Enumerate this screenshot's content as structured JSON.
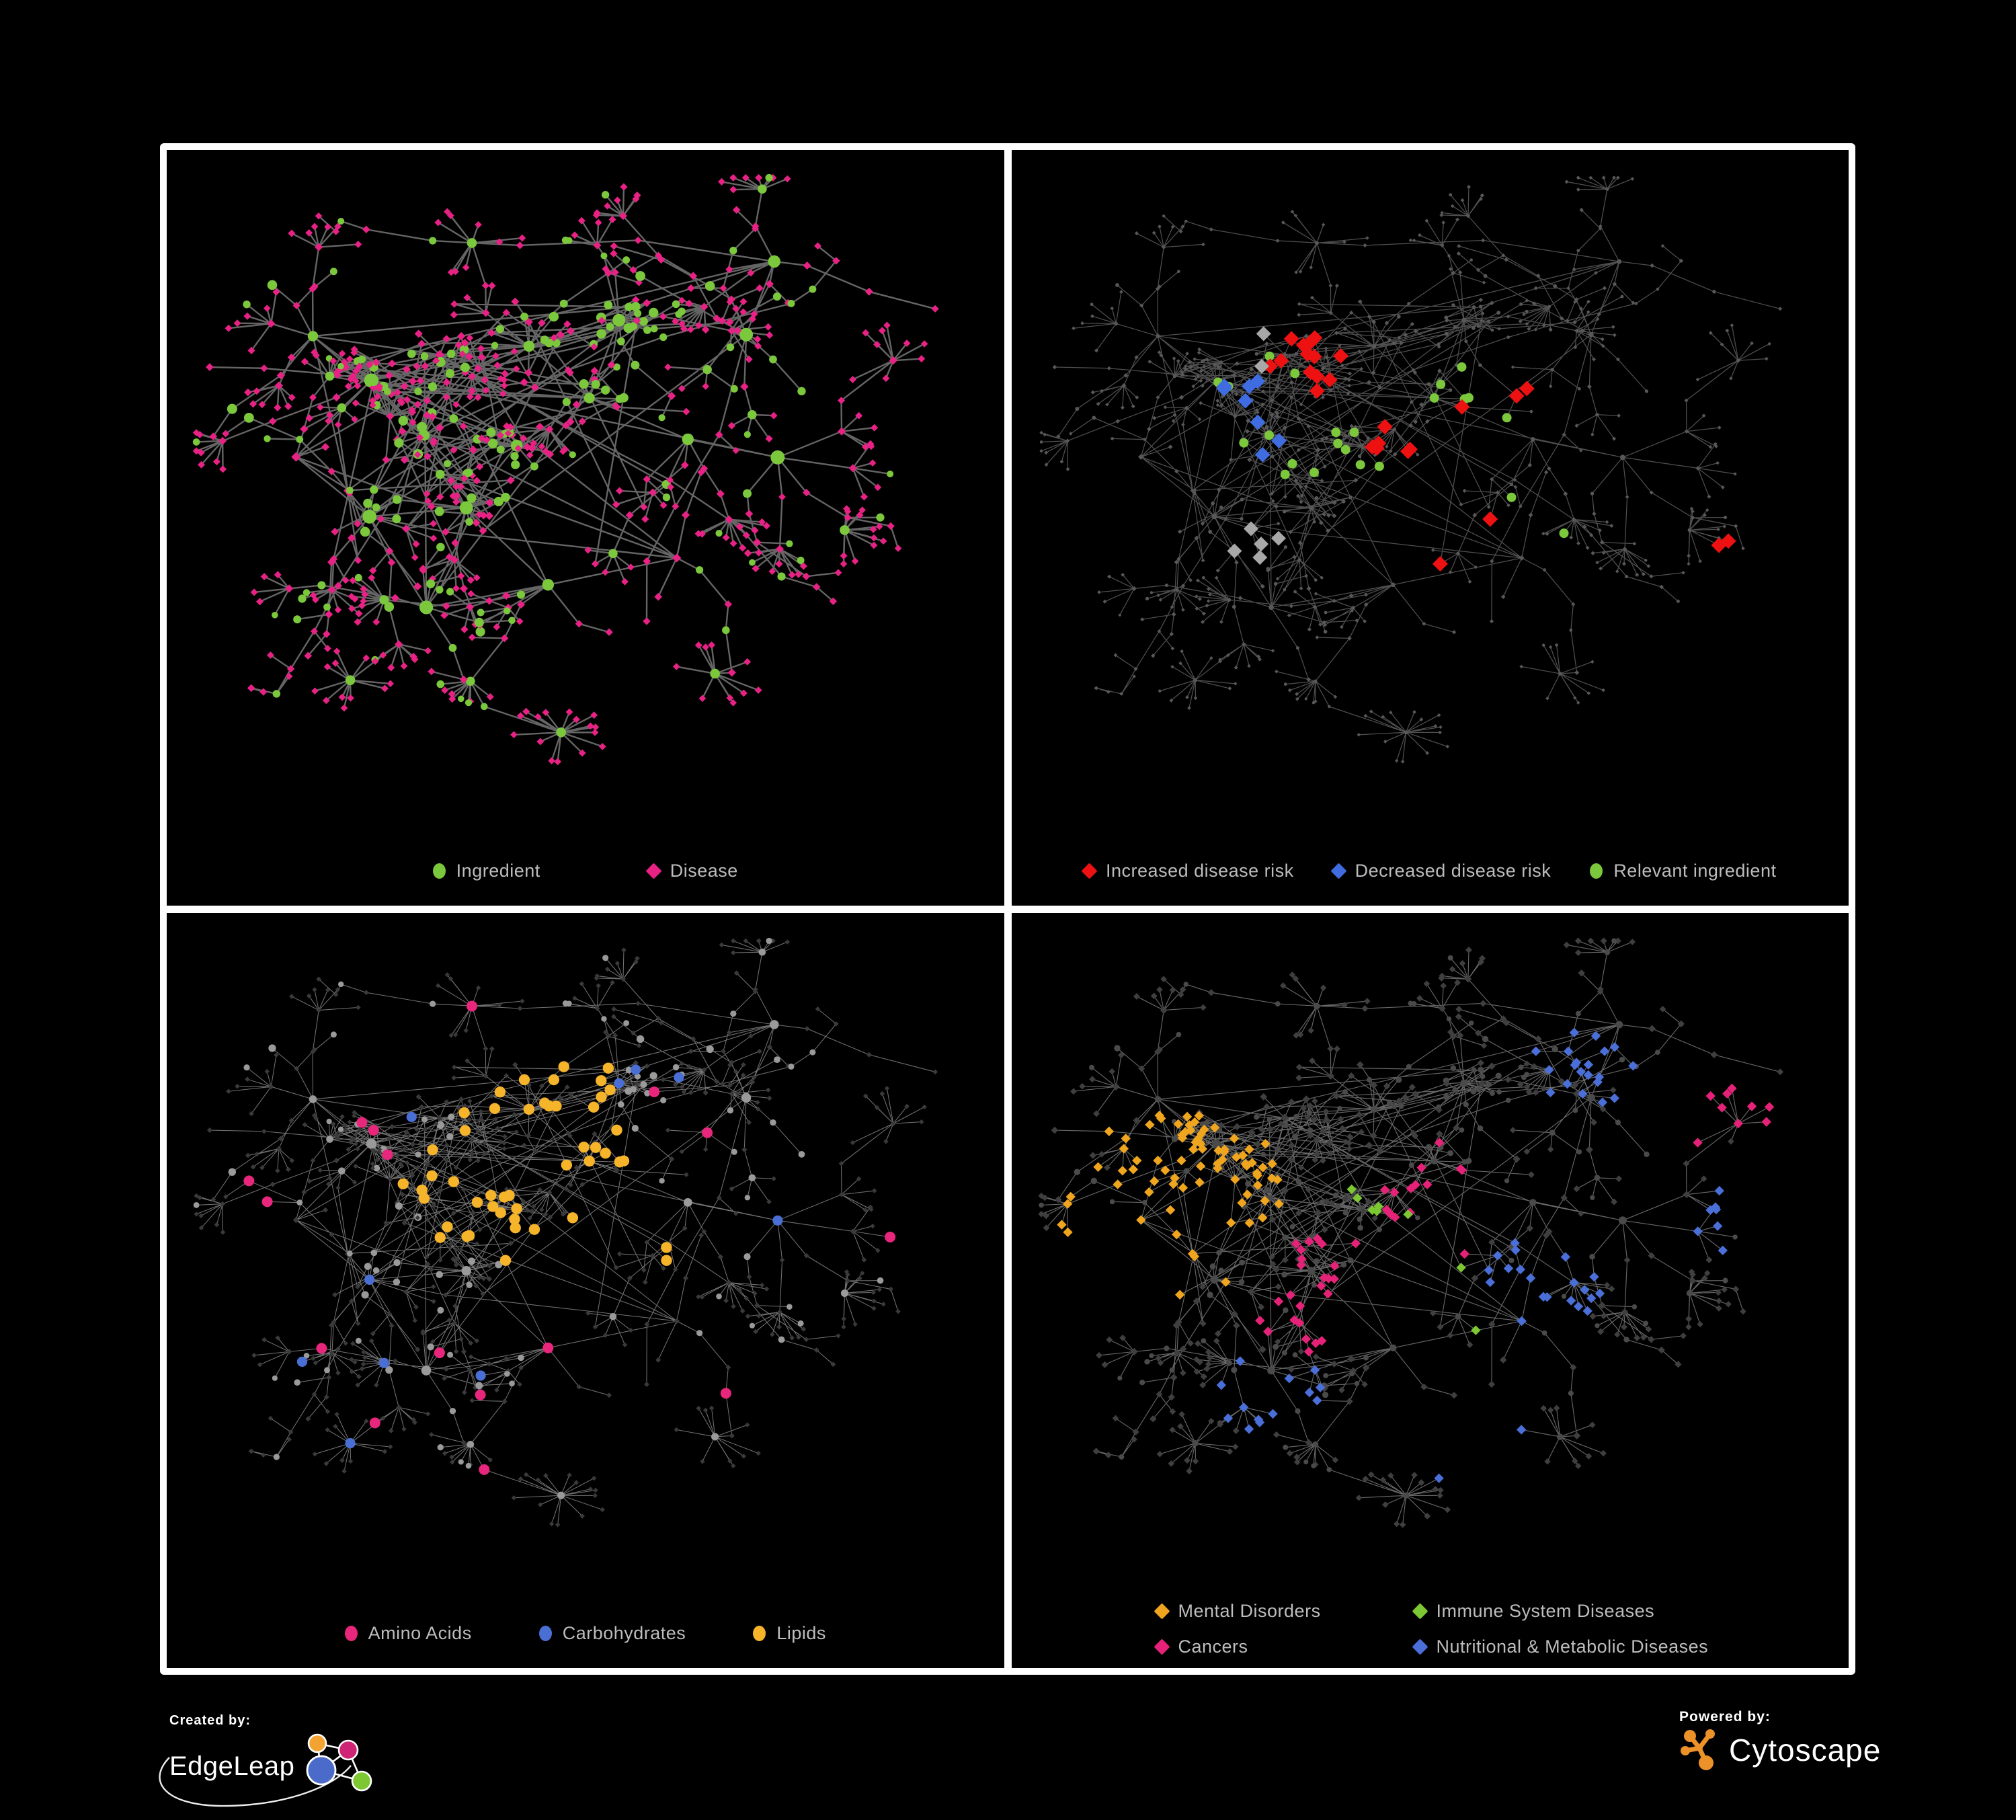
{
  "page": {
    "background": "#000000",
    "panel_background": "#000000",
    "panel_border": "#ffffff",
    "legend_text_color": "#bdbdbd"
  },
  "panels": [
    {
      "name": "ingredient-disease-network",
      "legend_layout": "row",
      "legend_gap": 160,
      "legend": [
        {
          "label": "Ingredient",
          "shape": "circle",
          "color": "#7cc83c"
        },
        {
          "label": "Disease",
          "shape": "diamond",
          "color": "#e82185"
        }
      ]
    },
    {
      "name": "disease-risk-network",
      "legend_layout": "row",
      "legend_gap": 58,
      "legend": [
        {
          "label": "Increased disease risk",
          "shape": "diamond",
          "color": "#ee1111"
        },
        {
          "label": "Decreased disease risk",
          "shape": "diamond",
          "color": "#3f6ce0"
        },
        {
          "label": "Relevant ingredient",
          "shape": "circle",
          "color": "#7cc83c"
        }
      ]
    },
    {
      "name": "nutrient-class-network",
      "legend_layout": "row",
      "legend_gap": 100,
      "legend": [
        {
          "label": "Amino Acids",
          "shape": "circle",
          "color": "#e8267c"
        },
        {
          "label": "Carbohydrates",
          "shape": "circle",
          "color": "#4a6fd4"
        },
        {
          "label": "Lipids",
          "shape": "circle",
          "color": "#f6b42b"
        }
      ]
    },
    {
      "name": "disease-class-network",
      "legend_layout": "grid2",
      "legend": [
        {
          "label": "Mental Disorders",
          "shape": "diamond",
          "color": "#f0a51f"
        },
        {
          "label": "Immune System Diseases",
          "shape": "diamond",
          "color": "#7cc832"
        },
        {
          "label": "Cancers",
          "shape": "diamond",
          "color": "#e62278"
        },
        {
          "label": "Nutritional & Metabolic Diseases",
          "shape": "diamond",
          "color": "#4a6fd8"
        }
      ]
    }
  ],
  "footer": {
    "created_by_label": "Created by:",
    "created_by_name": "EdgeLeap",
    "powered_by_label": "Powered by:",
    "powered_by_name": "Cytoscape",
    "edgeleap_colors": {
      "orange": "#f2a332",
      "pink": "#cf2475",
      "blue": "#4a6bc9",
      "green": "#7dc832"
    },
    "cytoscape_color": "#ed9129"
  },
  "network": {
    "type": "network",
    "seed": 7,
    "hubs": [
      [
        0.33,
        0.3,
        0.5
      ],
      [
        0.43,
        0.28,
        0.55
      ],
      [
        0.3,
        0.41,
        0.45
      ],
      [
        0.41,
        0.43,
        0.5
      ],
      [
        0.24,
        0.33,
        0.4
      ],
      [
        0.51,
        0.35,
        0.5
      ],
      [
        0.36,
        0.53,
        0.45
      ],
      [
        0.55,
        0.23,
        0.85
      ],
      [
        0.23,
        0.53,
        0.4
      ],
      [
        0.62,
        0.43,
        0.5
      ],
      [
        0.7,
        0.27,
        0.35
      ],
      [
        0.74,
        0.45,
        0.35
      ],
      [
        0.45,
        0.64,
        0.4
      ],
      [
        0.62,
        0.61,
        0.35
      ],
      [
        0.17,
        0.26,
        0.35
      ],
      [
        0.3,
        0.67,
        0.35
      ],
      [
        0.73,
        0.14,
        0.3
      ],
      [
        0.14,
        0.44,
        0.35
      ]
    ],
    "dense_hubs": 9,
    "fan_probability": 0.5,
    "cross_edges": 45,
    "dandelions": [
      [
        0.47,
        0.87,
        16
      ],
      [
        0.21,
        0.79,
        11
      ],
      [
        0.82,
        0.56,
        12
      ],
      [
        0.36,
        0.12,
        9
      ],
      [
        0.88,
        0.3,
        9
      ],
      [
        0.66,
        0.78,
        10
      ]
    ],
    "chains": [
      [
        0.92,
        0.08
      ],
      [
        0.06,
        0.86
      ],
      [
        0.94,
        0.78
      ],
      [
        0.08,
        0.08
      ],
      [
        0.5,
        0.95
      ]
    ],
    "styles": [
      {
        "edge": {
          "color": "#6a6a6a",
          "width": 2.4,
          "opacity": 0.95
        },
        "ingredient": {
          "shape": "circle",
          "color": "#7cc83c",
          "size": 3.4,
          "size_scale": 2.6
        },
        "disease": {
          "shape": "diamond",
          "color": "#e82185",
          "size": 4.8,
          "size_scale": 0.9
        },
        "highlights": []
      },
      {
        "edge": {
          "color": "#5d5d5d",
          "width": 1.25,
          "opacity": 0.85
        },
        "ingredient": {
          "shape": "circle",
          "color": "#585858",
          "size": 1.7,
          "size_scale": 0.8
        },
        "disease": {
          "shape": "diamond",
          "color": "#585858",
          "size": 2.3,
          "size_scale": 0.8
        },
        "highlights": [
          {
            "base": "disease",
            "shape": "diamond",
            "color": "#ee1111",
            "size": 11.5,
            "count": 26,
            "centers": [
              [
                0.4,
                0.38
              ],
              [
                0.33,
                0.3
              ],
              [
                0.47,
                0.45
              ],
              [
                0.52,
                0.55
              ],
              [
                0.44,
                0.62
              ],
              [
                0.86,
                0.62
              ],
              [
                0.58,
                0.35
              ]
            ],
            "r": 0.1,
            "uniform": 0.015
          },
          {
            "base": "disease",
            "shape": "diamond",
            "color": "#3f6ce0",
            "size": 11.5,
            "count": 8,
            "centers": [
              [
                0.26,
                0.34
              ],
              [
                0.29,
                0.42
              ],
              [
                0.87,
                0.2
              ]
            ],
            "r": 0.07,
            "uniform": 0.004
          },
          {
            "base": "disease",
            "shape": "diamond",
            "color": "#a8a8a8",
            "size": 11.0,
            "count": 7,
            "centers": [
              [
                0.3,
                0.3
              ],
              [
                0.45,
                0.5
              ],
              [
                0.55,
                0.42
              ],
              [
                0.3,
                0.6
              ]
            ],
            "r": 0.1,
            "uniform": 0.01
          },
          {
            "base": "ingredient",
            "shape": "circle",
            "color": "#7cc83c",
            "size": 7.0,
            "count": 24,
            "centers": [
              [
                0.38,
                0.36
              ],
              [
                0.45,
                0.42
              ],
              [
                0.33,
                0.45
              ],
              [
                0.52,
                0.38
              ],
              [
                0.6,
                0.55
              ],
              [
                0.25,
                0.3
              ]
            ],
            "r": 0.13,
            "uniform": 0.02
          }
        ]
      },
      {
        "edge": {
          "color": "#8f8f8f",
          "width": 1.05,
          "opacity": 0.8
        },
        "ingredient": {
          "shape": "circle",
          "color": "#9a9a9a",
          "size": 3.2,
          "size_scale": 1.6
        },
        "disease": {
          "shape": "diamond",
          "color": "#3a3a3a",
          "size": 3.4,
          "size_scale": 0.5
        },
        "highlights": [
          {
            "base": "ingredient",
            "shape": "circle",
            "color": "#f6b42b",
            "size": 8.2,
            "count": 48,
            "centers": [
              [
                0.44,
                0.32
              ],
              [
                0.4,
                0.45
              ],
              [
                0.48,
                0.38
              ],
              [
                0.36,
                0.38
              ],
              [
                0.52,
                0.52
              ],
              [
                0.45,
                0.27
              ]
            ],
            "r": 0.1,
            "uniform": 0.03
          },
          {
            "base": "ingredient",
            "shape": "circle",
            "color": "#e8267c",
            "size": 8.0,
            "count": 16,
            "centers": [],
            "r": 0.1,
            "uniform": 1.0
          },
          {
            "base": "ingredient",
            "shape": "circle",
            "color": "#4a6fd4",
            "size": 7.6,
            "count": 10,
            "centers": [
              [
                0.45,
                0.27
              ],
              [
                0.43,
                0.34
              ]
            ],
            "r": 0.05,
            "uniform": 0.02
          }
        ]
      },
      {
        "edge": {
          "color": "#808080",
          "width": 1.15,
          "opacity": 0.8
        },
        "ingredient": {
          "shape": "circle",
          "color": "#4a4a4a",
          "size": 3.0,
          "size_scale": 1.1
        },
        "disease": {
          "shape": "diamond",
          "color": "#3f3f3f",
          "size": 4.2,
          "size_scale": 0.9
        },
        "highlights": [
          {
            "base": "disease",
            "shape": "diamond",
            "color": "#f0a51f",
            "size": 7.2,
            "count": 78,
            "centers": [
              [
                0.16,
                0.42
              ],
              [
                0.2,
                0.48
              ],
              [
                0.12,
                0.48
              ],
              [
                0.24,
                0.4
              ],
              [
                0.18,
                0.35
              ]
            ],
            "r": 0.09,
            "uniform": 0.015
          },
          {
            "base": "disease",
            "shape": "diamond",
            "color": "#e62278",
            "size": 7.2,
            "count": 48,
            "centers": [
              [
                0.4,
                0.52
              ],
              [
                0.46,
                0.48
              ],
              [
                0.36,
                0.58
              ],
              [
                0.52,
                0.4
              ],
              [
                0.86,
                0.28
              ]
            ],
            "r": 0.08,
            "uniform": 0.015
          },
          {
            "base": "disease",
            "shape": "diamond",
            "color": "#4a6fd8",
            "size": 7.2,
            "count": 62,
            "centers": [
              [
                0.6,
                0.52
              ],
              [
                0.64,
                0.56
              ],
              [
                0.78,
                0.3
              ],
              [
                0.7,
                0.2
              ],
              [
                0.3,
                0.72
              ],
              [
                0.55,
                0.8
              ],
              [
                0.85,
                0.45
              ],
              [
                0.25,
                0.15
              ]
            ],
            "r": 0.07,
            "uniform": 0.03
          },
          {
            "base": "disease",
            "shape": "diamond",
            "color": "#7cc832",
            "size": 7.2,
            "count": 8,
            "centers": [
              [
                0.45,
                0.4
              ],
              [
                0.55,
                0.55
              ]
            ],
            "r": 0.2,
            "uniform": 0.2
          }
        ]
      }
    ]
  }
}
